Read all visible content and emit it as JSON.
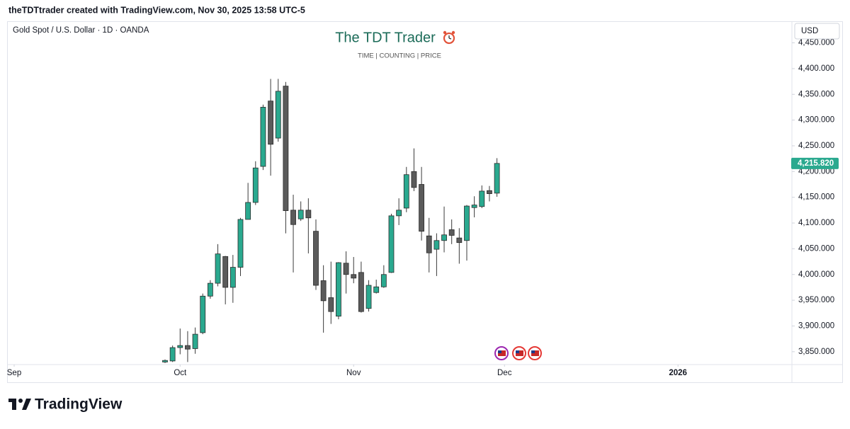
{
  "header": {
    "credit": "theTDTtrader created with TradingView.com, Nov 30, 2025 13:58 UTC-5"
  },
  "chart_data": {
    "type": "candlestick",
    "symbol": "Gold Spot / U.S. Dollar · 1D · OANDA",
    "title": "The TDT Trader",
    "subtitle": "TIME |  COUNTING  |  PRICE",
    "currency": "USD",
    "up_color": "#2aa98f",
    "down_color": "#5b5b5b",
    "open": [
      3830,
      3832,
      3858,
      3862,
      3856,
      3887,
      3958,
      3983,
      4035,
      3975,
      4014,
      4107,
      4140,
      4210,
      4337,
      4265,
      4366,
      4125,
      4108,
      4125,
      4084,
      3988,
      3955,
      3919,
      4022,
      4000,
      4004,
      3934,
      3965,
      3976,
      4004,
      4114,
      4129,
      4200,
      4175,
      4075,
      4049,
      4066,
      4087,
      4071,
      4066,
      4130,
      4132,
      4163,
      4158
    ],
    "high": [
      3835,
      3862,
      3895,
      3890,
      3897,
      3963,
      3989,
      4059,
      4036,
      4038,
      4110,
      4178,
      4220,
      4330,
      4380,
      4380,
      4374,
      4155,
      4142,
      4148,
      4107,
      4018,
      4025,
      4024,
      4045,
      4034,
      4025,
      3989,
      3990,
      4018,
      4118,
      4148,
      4209,
      4245,
      4209,
      4110,
      4080,
      4132,
      4107,
      4090,
      4135,
      4152,
      4173,
      4172,
      4226
    ],
    "low": [
      3828,
      3830,
      3845,
      3830,
      3846,
      3884,
      3953,
      3977,
      3942,
      3945,
      3997,
      4107,
      4135,
      4203,
      4192,
      4258,
      4080,
      4004,
      4104,
      4041,
      3970,
      3887,
      3904,
      3913,
      3963,
      3983,
      3926,
      3928,
      3963,
      3974,
      4003,
      4096,
      4121,
      4162,
      4066,
      4004,
      3997,
      4043,
      4059,
      4021,
      4027,
      4111,
      4129,
      4142,
      4151
    ],
    "close": [
      3833,
      3858,
      3862,
      3855,
      3884,
      3958,
      3983,
      4040,
      3975,
      4014,
      4107,
      4140,
      4207,
      4325,
      4253,
      4356,
      4124,
      4097,
      4125,
      4110,
      3979,
      3949,
      3928,
      4023,
      4000,
      3993,
      3928,
      3979,
      3976,
      4000,
      4114,
      4125,
      4194,
      4169,
      4084,
      4042,
      4066,
      4077,
      4076,
      4062,
      4133,
      4135,
      4162,
      4157,
      4215.82
    ],
    "close_label": "4,215.820",
    "xlim": [
      -20.75,
      83.1
    ],
    "xticks": [
      {
        "value": -20,
        "label": "Sep"
      },
      {
        "value": 2,
        "label": "Oct"
      },
      {
        "value": 25,
        "label": "Nov"
      },
      {
        "value": 45,
        "label": "Dec"
      },
      {
        "value": 68,
        "label": "2026"
      }
    ],
    "ylim": [
      3825,
      4492
    ],
    "yticks": [
      {
        "value": 3850,
        "label": "3,850.000"
      },
      {
        "value": 3900,
        "label": "3,900.000"
      },
      {
        "value": 3950,
        "label": "3,950.000"
      },
      {
        "value": 4000,
        "label": "4,000.000"
      },
      {
        "value": 4050,
        "label": "4,050.000"
      },
      {
        "value": 4100,
        "label": "4,100.000"
      },
      {
        "value": 4150,
        "label": "4,150.000"
      },
      {
        "value": 4200,
        "label": "4,200.000"
      },
      {
        "value": 4250,
        "label": "4,250.000"
      },
      {
        "value": 4300,
        "label": "4,300.000"
      },
      {
        "value": 4350,
        "label": "4,350.000"
      },
      {
        "value": 4400,
        "label": "4,400.000"
      },
      {
        "value": 4450,
        "label": "4,450.000"
      }
    ],
    "grid": false
  },
  "footer": {
    "brand": "TradingView"
  }
}
